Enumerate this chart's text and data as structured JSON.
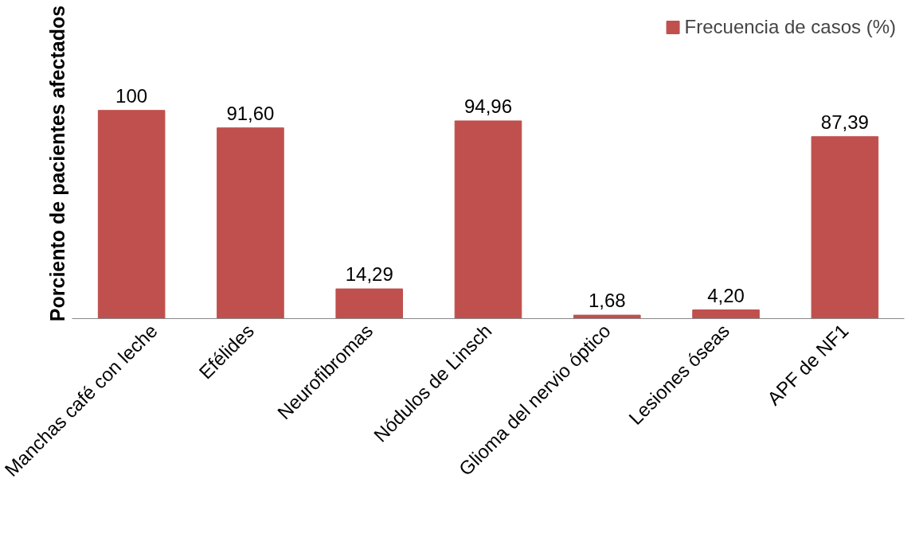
{
  "chart_data": {
    "type": "bar",
    "ylabel": "Porciento de pacientes afectados",
    "categories": [
      "Manchas café con leche",
      "Efélides",
      "Neurofibromas",
      "Nódulos de Linsch",
      "Glioma del nervio óptico",
      "Lesiones óseas",
      "APF de NF1"
    ],
    "series": [
      {
        "name": "Frecuencia de casos (%)",
        "color": "#c0504d",
        "values": [
          100,
          91.6,
          14.29,
          94.96,
          1.68,
          4.2,
          87.39
        ],
        "value_labels": [
          "100",
          "91,60",
          "14,29",
          "94,96",
          "1,68",
          "4,20",
          "87,39"
        ]
      }
    ],
    "legend": "top right",
    "grid": false
  }
}
